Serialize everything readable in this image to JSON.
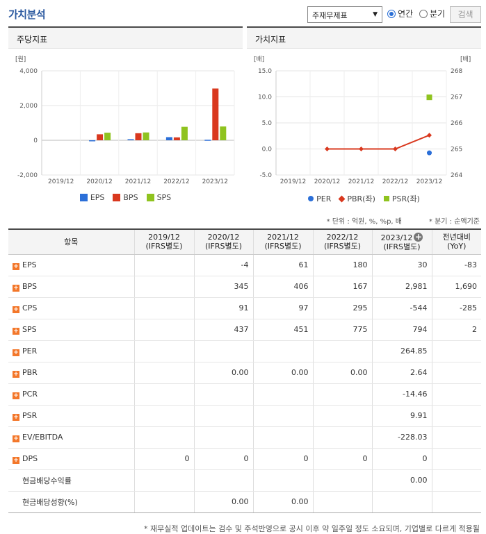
{
  "header": {
    "title": "가치분석",
    "select_value": "주재무제표",
    "radio_annual": "연간",
    "radio_quarter": "분기",
    "search_label": "검색"
  },
  "left_panel": {
    "title": "주당지표"
  },
  "right_panel": {
    "title": "가치지표"
  },
  "notes": {
    "units": "* 단위 : 억원, %, %p, 배",
    "quarter": "* 분기 : 순액기준"
  },
  "table": {
    "col_item": "항목",
    "columns": [
      [
        "2019/12",
        "(IFRS별도)"
      ],
      [
        "2020/12",
        "(IFRS별도)"
      ],
      [
        "2021/12",
        "(IFRS별도)"
      ],
      [
        "2022/12",
        "(IFRS별도)"
      ],
      [
        "2023/12",
        "(IFRS별도)"
      ],
      [
        "전년대비",
        "(YoY)"
      ]
    ],
    "rows": [
      {
        "name": "EPS",
        "expand": true,
        "values": [
          "",
          "-4",
          "61",
          "180",
          "30",
          "-83"
        ]
      },
      {
        "name": "BPS",
        "expand": true,
        "values": [
          "",
          "345",
          "406",
          "167",
          "2,981",
          "1,690"
        ]
      },
      {
        "name": "CPS",
        "expand": true,
        "values": [
          "",
          "91",
          "97",
          "295",
          "-544",
          "-285"
        ]
      },
      {
        "name": "SPS",
        "expand": true,
        "values": [
          "",
          "437",
          "451",
          "775",
          "794",
          "2"
        ]
      },
      {
        "name": "PER",
        "expand": true,
        "values": [
          "",
          "",
          "",
          "",
          "264.85",
          ""
        ]
      },
      {
        "name": "PBR",
        "expand": true,
        "values": [
          "",
          "0.00",
          "0.00",
          "0.00",
          "2.64",
          ""
        ]
      },
      {
        "name": "PCR",
        "expand": true,
        "values": [
          "",
          "",
          "",
          "",
          "-14.46",
          ""
        ]
      },
      {
        "name": "PSR",
        "expand": true,
        "values": [
          "",
          "",
          "",
          "",
          "9.91",
          ""
        ]
      },
      {
        "name": "EV/EBITDA",
        "expand": true,
        "values": [
          "",
          "",
          "",
          "",
          "-228.03",
          ""
        ]
      },
      {
        "name": "DPS",
        "expand": true,
        "values": [
          "0",
          "0",
          "0",
          "0",
          "0",
          ""
        ]
      },
      {
        "name": "현금배당수익률",
        "expand": false,
        "values": [
          "",
          "",
          "",
          "",
          "0.00",
          ""
        ]
      },
      {
        "name": "현금배당성향(%)",
        "expand": false,
        "values": [
          "",
          "0.00",
          "0.00",
          "",
          "",
          ""
        ]
      }
    ]
  },
  "footnote": "* 재무실적 업데이트는 검수 및 주석반영으로 공시 이후 약 일주일 정도 소요되며, 기업별로 다르게 적용될",
  "chart_data": [
    {
      "type": "bar",
      "title": "주당지표",
      "y_unit": "[원]",
      "categories": [
        "2019/12",
        "2020/12",
        "2021/12",
        "2022/12",
        "2023/12"
      ],
      "ylim": [
        -2000,
        4000
      ],
      "yticks": [
        "4,000",
        "2,000",
        "0",
        "-2,000"
      ],
      "ytick_values": [
        4000,
        2000,
        0,
        -2000
      ],
      "grid": true,
      "legend_position": "bottom",
      "series": [
        {
          "name": "EPS",
          "color": "#2b6fd8",
          "values": [
            null,
            -4,
            61,
            180,
            30
          ]
        },
        {
          "name": "BPS",
          "color": "#d9381e",
          "values": [
            null,
            345,
            406,
            167,
            2981
          ]
        },
        {
          "name": "SPS",
          "color": "#8fc31f",
          "values": [
            null,
            437,
            451,
            775,
            794
          ]
        }
      ]
    },
    {
      "type": "line",
      "title": "가치지표",
      "y_unit_left": "[배]",
      "y_unit_right": "[배]",
      "categories": [
        "2019/12",
        "2020/12",
        "2021/12",
        "2022/12",
        "2023/12"
      ],
      "ylim_left": [
        -5,
        15
      ],
      "ylim_right": [
        264,
        268
      ],
      "yticks_left": [
        "15.0",
        "10.0",
        "5.0",
        "0.0",
        "-5.0"
      ],
      "ytick_values_left": [
        15,
        10,
        5,
        0,
        -5
      ],
      "yticks_right": [
        "268",
        "267",
        "266",
        "265",
        "264"
      ],
      "ytick_values_right": [
        268,
        267,
        266,
        265,
        264
      ],
      "grid": true,
      "legend_position": "bottom",
      "series": [
        {
          "name": "PER",
          "color": "#2b6fd8",
          "axis": "right",
          "marker": "circle",
          "values": [
            null,
            null,
            null,
            null,
            264.85
          ]
        },
        {
          "name": "PBR(좌)",
          "color": "#d9381e",
          "axis": "left",
          "marker": "diamond",
          "values": [
            null,
            0.0,
            0.0,
            0.0,
            2.64
          ]
        },
        {
          "name": "PSR(좌)",
          "color": "#8fc31f",
          "axis": "left",
          "marker": "square",
          "values": [
            null,
            null,
            null,
            null,
            9.91
          ]
        }
      ]
    }
  ]
}
